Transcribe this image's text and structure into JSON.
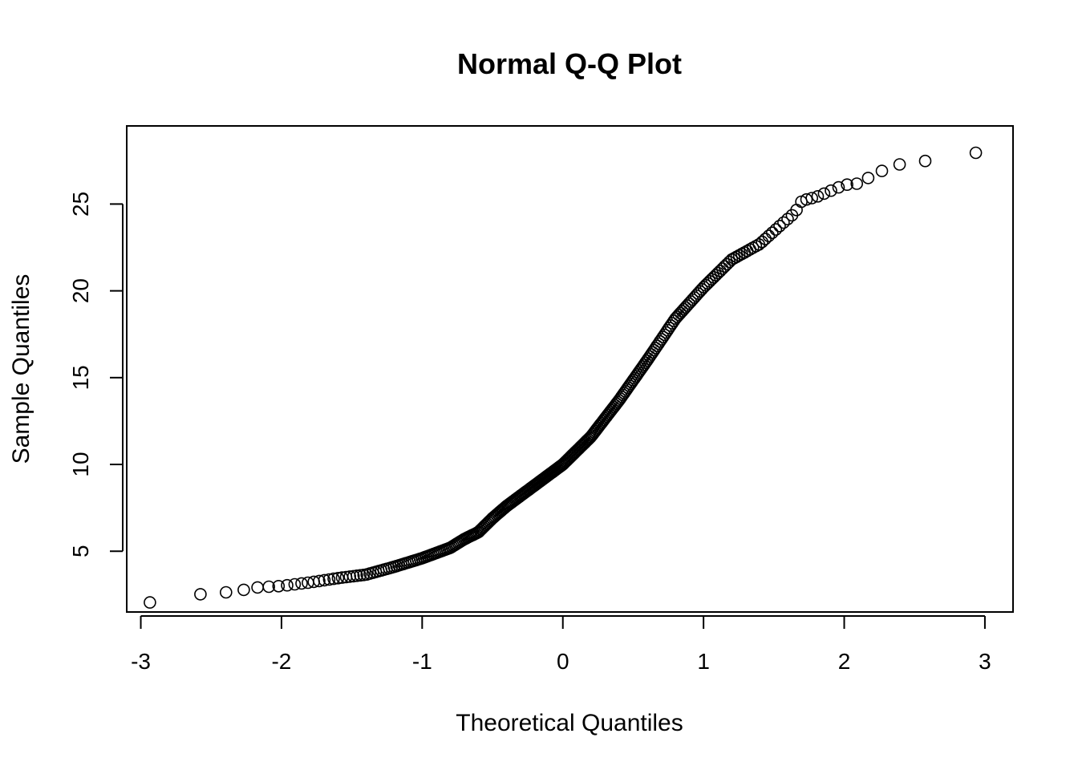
{
  "chart_data": {
    "type": "scatter",
    "title": "Normal Q-Q Plot",
    "xlabel": "Theoretical Quantiles",
    "ylabel": "Sample Quantiles",
    "xlim": [
      -3.1,
      3.2
    ],
    "ylim": [
      1.5,
      29.5
    ],
    "x_ticks": [
      -3,
      -2,
      -1,
      0,
      1,
      2,
      3
    ],
    "y_ticks": [
      5,
      10,
      15,
      20,
      25
    ],
    "grid": false,
    "legend": "none",
    "sample_size": 300,
    "anchors": [
      [
        -2.97,
        2.0
      ],
      [
        -2.61,
        2.5
      ],
      [
        -2.43,
        2.6
      ],
      [
        -2.31,
        2.7
      ],
      [
        -2.2,
        2.9
      ],
      [
        -2.0,
        3.0
      ],
      [
        -1.8,
        3.2
      ],
      [
        -1.6,
        3.45
      ],
      [
        -1.4,
        3.65
      ],
      [
        -1.2,
        4.1
      ],
      [
        -1.0,
        4.6
      ],
      [
        -0.8,
        5.2
      ],
      [
        -0.7,
        5.7
      ],
      [
        -0.6,
        6.1
      ],
      [
        -0.5,
        6.9
      ],
      [
        -0.4,
        7.6
      ],
      [
        -0.2,
        8.8
      ],
      [
        0.0,
        10.0
      ],
      [
        0.2,
        11.6
      ],
      [
        0.4,
        13.7
      ],
      [
        0.6,
        16.0
      ],
      [
        0.8,
        18.4
      ],
      [
        1.0,
        20.2
      ],
      [
        1.1,
        21.0
      ],
      [
        1.2,
        21.8
      ],
      [
        1.4,
        22.7
      ],
      [
        1.55,
        23.8
      ],
      [
        1.65,
        24.5
      ],
      [
        1.7,
        25.2
      ],
      [
        1.8,
        25.4
      ],
      [
        2.0,
        26.1
      ],
      [
        2.12,
        26.2
      ],
      [
        2.22,
        26.8
      ],
      [
        2.31,
        27.0
      ],
      [
        2.43,
        27.4
      ],
      [
        2.61,
        27.5
      ],
      [
        2.97,
        28.0
      ]
    ]
  }
}
